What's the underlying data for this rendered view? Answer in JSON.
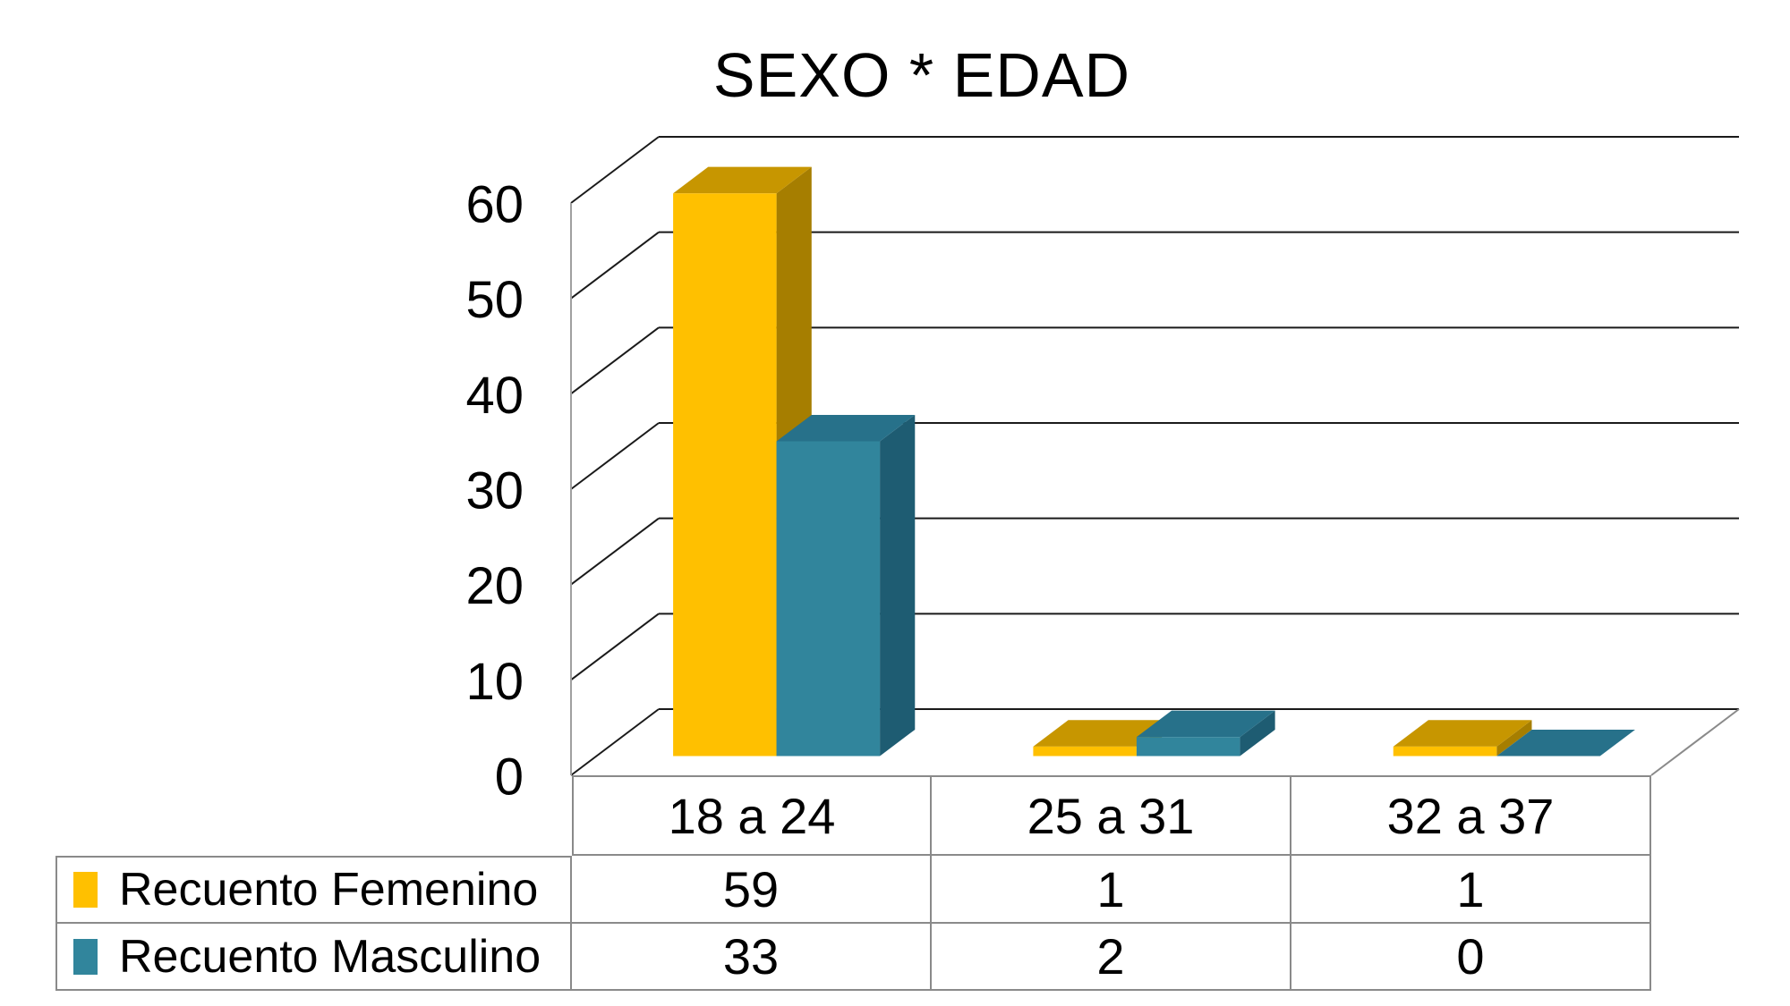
{
  "page": {
    "background": "#FFFFFF"
  },
  "chart_data": {
    "type": "bar",
    "variant": "3d-clustered-column",
    "title": "SEXO * EDAD",
    "categories": [
      "18 a 24",
      "25 a 31",
      "32 a 37"
    ],
    "series": [
      {
        "name": "Recuento Femenino",
        "values": [
          59,
          1,
          1
        ],
        "color": "#FFC000",
        "color_top": "#C79600",
        "color_side": "#A67E00"
      },
      {
        "name": "Recuento Masculino",
        "values": [
          33,
          2,
          0
        ],
        "color": "#31859C",
        "color_top": "#27718A",
        "color_side": "#1E5C72"
      }
    ],
    "yaxis": {
      "min": 0,
      "max": 60,
      "step": 10,
      "ticks": [
        "0",
        "10",
        "20",
        "30",
        "40",
        "50",
        "60"
      ]
    },
    "xlabel": "",
    "ylabel": "",
    "grid": true,
    "legend_position": "table-left",
    "data_table_shown": true,
    "colors": {
      "gridline": "#1A1A1A",
      "table_border": "#8A8A8A",
      "axis_line": "#A0A0A0",
      "text": "#000000"
    }
  }
}
